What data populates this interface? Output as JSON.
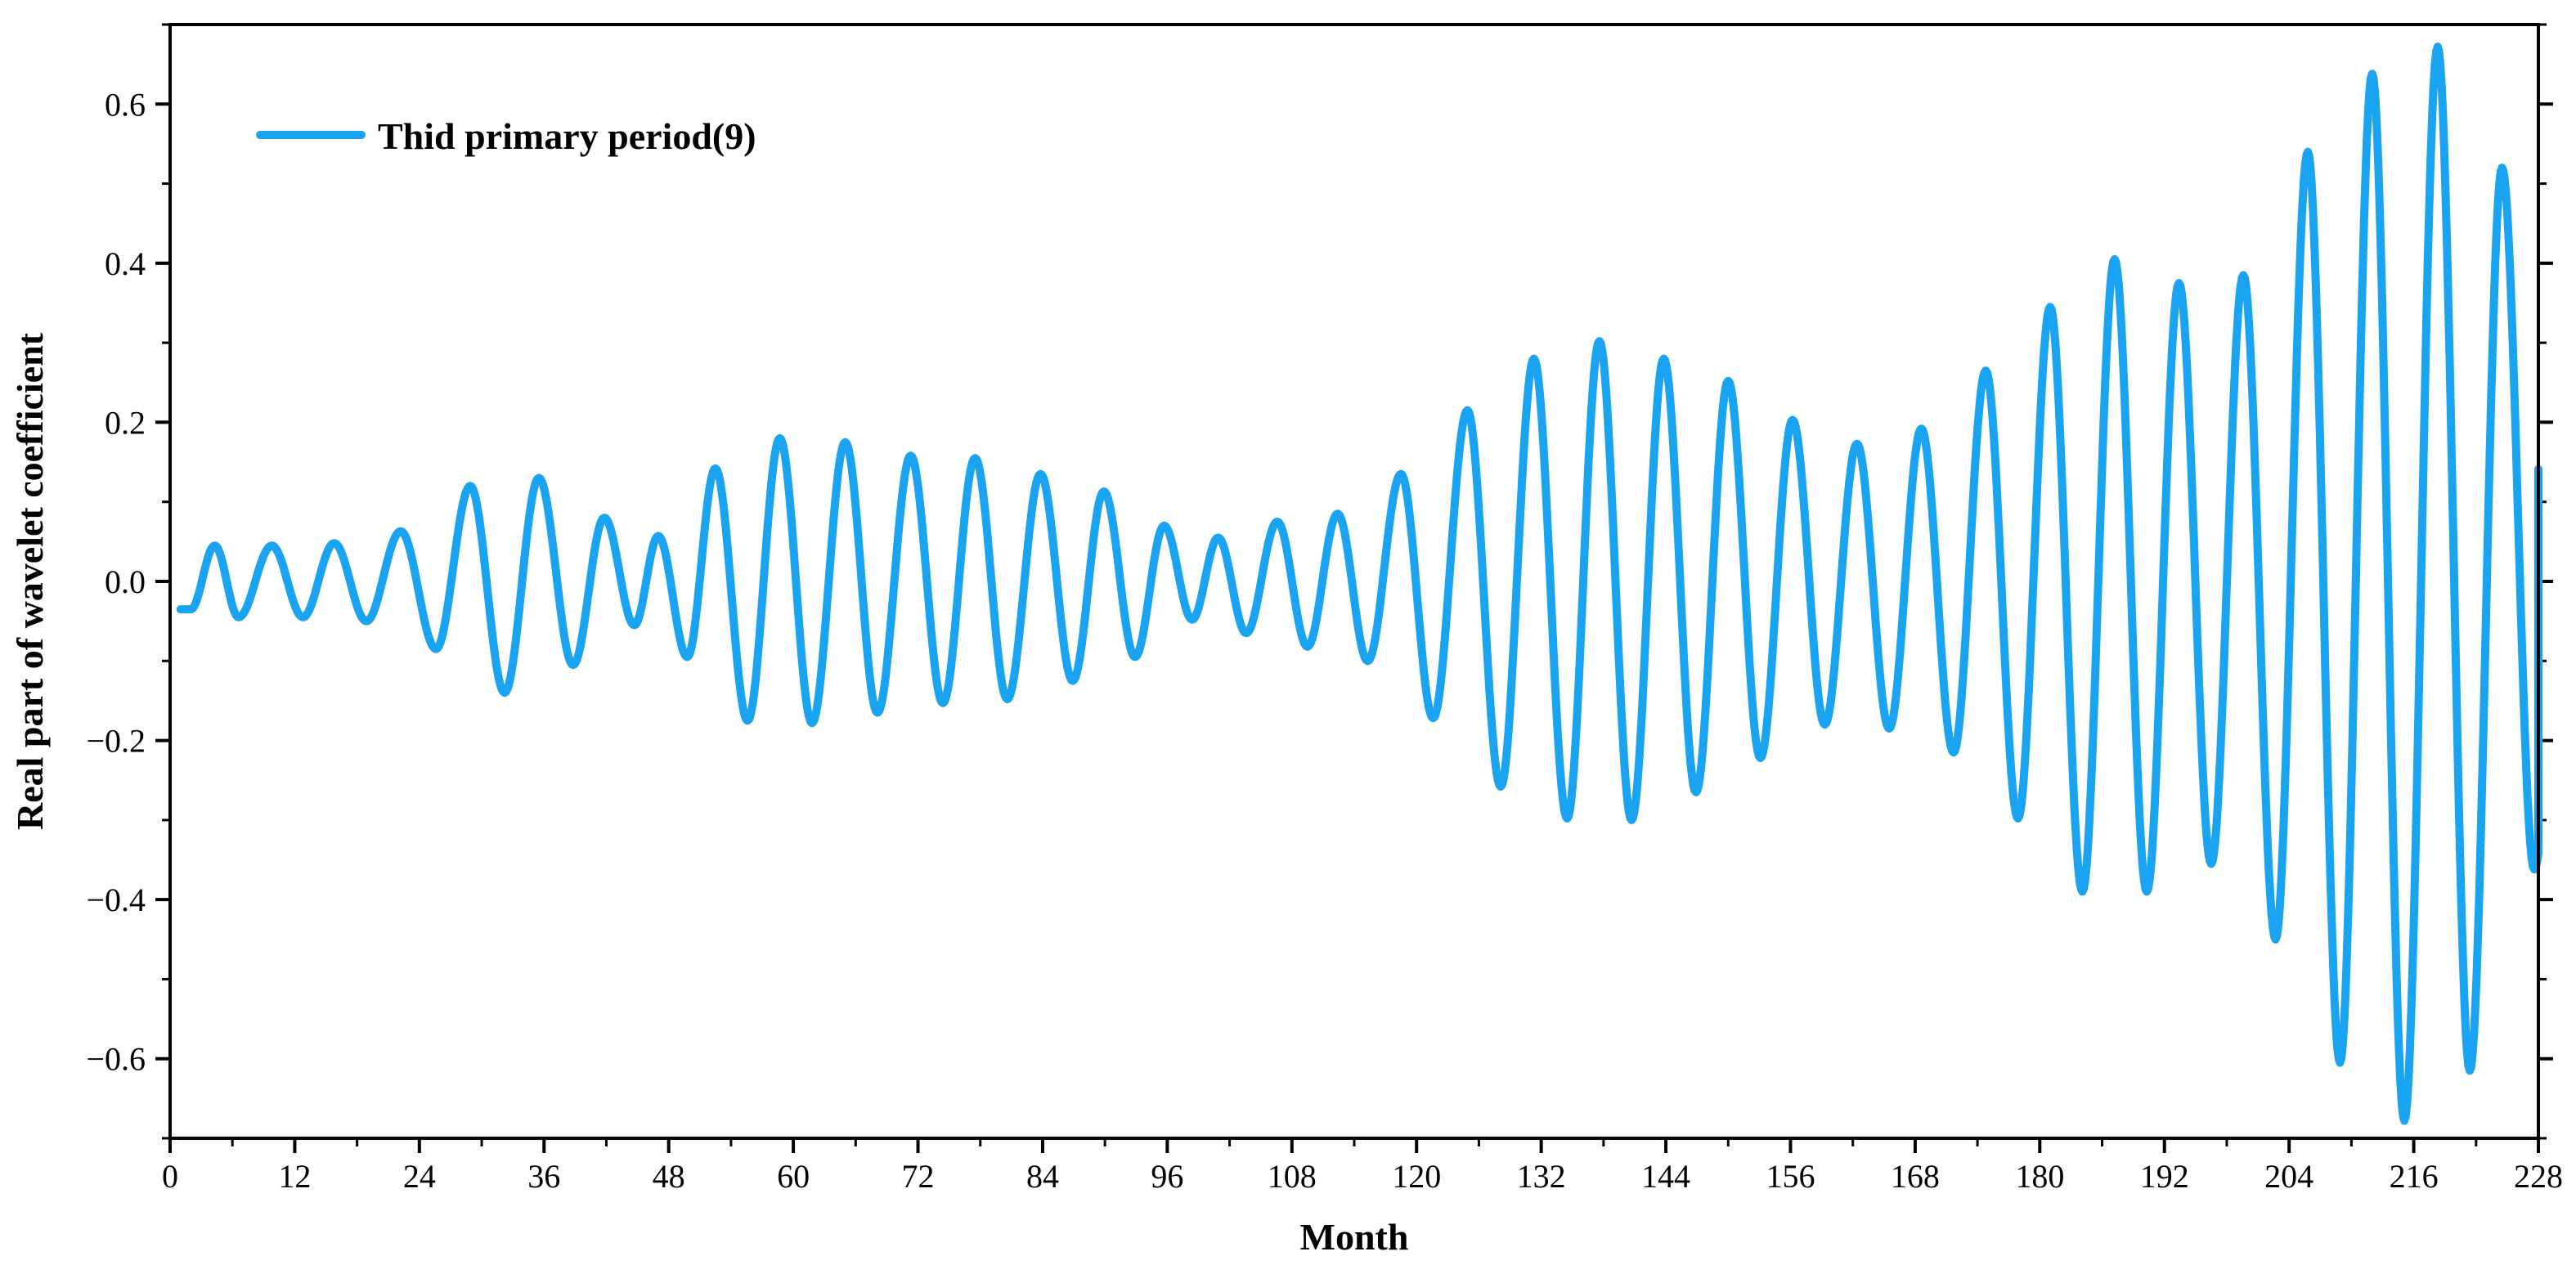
{
  "chart_data": {
    "type": "line",
    "title": "",
    "xlabel": "Month",
    "ylabel": "Real part of wavelet coefficient",
    "xlim": [
      0,
      228
    ],
    "ylim": [
      -0.7,
      0.7
    ],
    "x_ticks": [
      0,
      12,
      24,
      36,
      48,
      60,
      72,
      84,
      96,
      108,
      120,
      132,
      144,
      156,
      168,
      180,
      192,
      204,
      216,
      228
    ],
    "x_tick_labels": [
      "0",
      "12",
      "24",
      "36",
      "48",
      "60",
      "72",
      "84",
      "96",
      "108",
      "120",
      "132",
      "144",
      "156",
      "168",
      "180",
      "192",
      "204",
      "216",
      "228"
    ],
    "y_ticks": [
      -0.6,
      -0.4,
      -0.2,
      0.0,
      0.2,
      0.4,
      0.6
    ],
    "y_tick_labels": [
      "−0.6",
      "−0.4",
      "−0.2",
      "0.0",
      "0.2",
      "0.4",
      "0.6"
    ],
    "grid": false,
    "legend_position": "top-left",
    "series": [
      {
        "name": "Thid primary period(9)",
        "color": "#1aa3f0",
        "points": [
          [
            1,
            -0.035
          ],
          [
            2,
            -0.035
          ],
          [
            4.3,
            0.045
          ],
          [
            6.6,
            -0.045
          ],
          [
            9.8,
            0.045
          ],
          [
            12.8,
            -0.045
          ],
          [
            15.8,
            0.048
          ],
          [
            18.9,
            -0.05
          ],
          [
            22.2,
            0.063
          ],
          [
            25.6,
            -0.085
          ],
          [
            28.9,
            0.12
          ],
          [
            32.2,
            -0.14
          ],
          [
            35.5,
            0.13
          ],
          [
            38.8,
            -0.105
          ],
          [
            41.8,
            0.08
          ],
          [
            44.7,
            -0.055
          ],
          [
            47,
            0.057
          ],
          [
            49.8,
            -0.095
          ],
          [
            52.5,
            0.142
          ],
          [
            55.6,
            -0.175
          ],
          [
            58.7,
            0.18
          ],
          [
            61.8,
            -0.178
          ],
          [
            65,
            0.175
          ],
          [
            68.1,
            -0.165
          ],
          [
            71.3,
            0.158
          ],
          [
            74.4,
            -0.153
          ],
          [
            77.5,
            0.155
          ],
          [
            80.6,
            -0.148
          ],
          [
            83.8,
            0.135
          ],
          [
            86.9,
            -0.125
          ],
          [
            89.9,
            0.113
          ],
          [
            92.9,
            -0.095
          ],
          [
            95.7,
            0.07
          ],
          [
            98.4,
            -0.048
          ],
          [
            100.9,
            0.055
          ],
          [
            103.6,
            -0.065
          ],
          [
            106.6,
            0.075
          ],
          [
            109.5,
            -0.082
          ],
          [
            112.4,
            0.085
          ],
          [
            115.3,
            -0.1
          ],
          [
            118.5,
            0.135
          ],
          [
            121.6,
            -0.172
          ],
          [
            124.9,
            0.215
          ],
          [
            128.1,
            -0.258
          ],
          [
            131.3,
            0.28
          ],
          [
            134.5,
            -0.298
          ],
          [
            137.6,
            0.302
          ],
          [
            140.7,
            -0.3
          ],
          [
            143.8,
            0.28
          ],
          [
            146.9,
            -0.265
          ],
          [
            150,
            0.252
          ],
          [
            153.1,
            -0.222
          ],
          [
            156.2,
            0.203
          ],
          [
            159.3,
            -0.18
          ],
          [
            162.4,
            0.173
          ],
          [
            165.5,
            -0.185
          ],
          [
            168.6,
            0.192
          ],
          [
            171.7,
            -0.215
          ],
          [
            174.8,
            0.265
          ],
          [
            177.9,
            -0.298
          ],
          [
            181,
            0.345
          ],
          [
            184.1,
            -0.39
          ],
          [
            187.2,
            0.405
          ],
          [
            190.3,
            -0.39
          ],
          [
            193.4,
            0.375
          ],
          [
            196.5,
            -0.355
          ],
          [
            199.6,
            0.385
          ],
          [
            202.7,
            -0.45
          ],
          [
            205.8,
            0.54
          ],
          [
            208.9,
            -0.605
          ],
          [
            212,
            0.638
          ],
          [
            215.1,
            -0.678
          ],
          [
            218.3,
            0.672
          ],
          [
            221.4,
            -0.615
          ],
          [
            224.5,
            0.52
          ],
          [
            227.6,
            -0.362
          ],
          [
            230.7,
            0.142
          ],
          [
            232,
            -0.012
          ]
        ]
      }
    ]
  }
}
